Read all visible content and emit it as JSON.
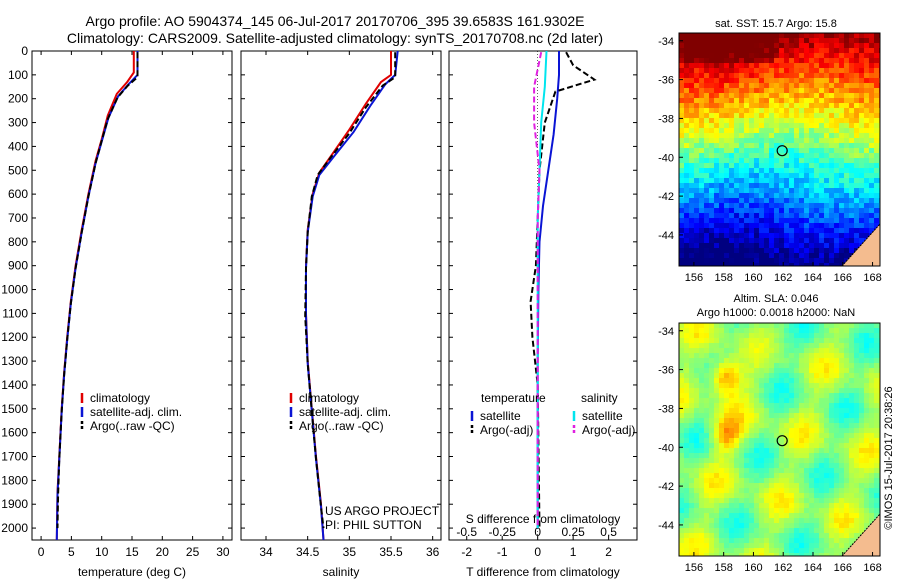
{
  "header": {
    "line1": "Argo profile: AO 5904374_145 06-Jul-2017 20170706_395 39.6583S 161.9302E",
    "line2": "Climatology: CARS2009. Satellite-adjusted climatology: synTS_20170708.nc (2d later)"
  },
  "footer_stamp": "©IMOS 15-Jul-2017 20:38:26",
  "colors": {
    "climatology": "#e00000",
    "satellite": "#0a14d4",
    "argo": "#000000",
    "sat_salinity": "#00e5ee",
    "argo_salinity": "#e020e0"
  },
  "chart_data": [
    {
      "type": "line",
      "id": "temperature",
      "xlabel": "temperature (deg C)",
      "ylim": [
        0,
        2050
      ],
      "y_inverted": true,
      "xlim": [
        -1.5,
        31.5
      ],
      "yticks": [
        "0",
        "100",
        "200",
        "300",
        "400",
        "500",
        "600",
        "700",
        "800",
        "900",
        "1000",
        "1100",
        "1200",
        "1300",
        "1400",
        "1500",
        "1600",
        "1700",
        "1800",
        "1900",
        "2000"
      ],
      "xticks": [
        "0",
        "5",
        "10",
        "15",
        "20",
        "25",
        "30"
      ],
      "legend": [
        "climatology",
        "satellite-adj. clim.",
        "Argo(..raw -QC)"
      ],
      "series": [
        {
          "name": "climatology",
          "style": "solid",
          "color": "climatology",
          "points": [
            [
              15.3,
              0
            ],
            [
              15.3,
              90
            ],
            [
              14.2,
              130
            ],
            [
              12.5,
              180
            ],
            [
              11.0,
              270
            ],
            [
              10.0,
              370
            ],
            [
              9.0,
              460
            ],
            [
              7.8,
              600
            ],
            [
              6.7,
              750
            ],
            [
              5.7,
              900
            ],
            [
              4.9,
              1050
            ],
            [
              4.3,
              1200
            ],
            [
              3.8,
              1350
            ],
            [
              3.4,
              1500
            ],
            [
              3.0,
              1700
            ],
            [
              2.7,
              1850
            ],
            [
              2.6,
              2050
            ]
          ]
        },
        {
          "name": "satellite-adj. clim.",
          "style": "solid",
          "color": "satellite",
          "points": [
            [
              15.9,
              0
            ],
            [
              15.9,
              100
            ],
            [
              14.4,
              140
            ],
            [
              12.7,
              190
            ],
            [
              11.1,
              280
            ],
            [
              10.0,
              380
            ],
            [
              9.0,
              470
            ],
            [
              7.8,
              610
            ],
            [
              6.7,
              760
            ],
            [
              5.7,
              910
            ],
            [
              4.9,
              1060
            ],
            [
              4.3,
              1210
            ],
            [
              3.8,
              1360
            ],
            [
              3.4,
              1510
            ],
            [
              3.0,
              1710
            ],
            [
              2.7,
              1860
            ],
            [
              2.6,
              2050
            ]
          ]
        },
        {
          "name": "Argo(..raw -QC)",
          "style": "dashed",
          "color": "argo",
          "points": [
            [
              15.9,
              5
            ],
            [
              15.9,
              110
            ],
            [
              14.3,
              145
            ],
            [
              12.6,
              195
            ],
            [
              11.0,
              285
            ],
            [
              9.9,
              385
            ],
            [
              9.0,
              470
            ],
            [
              7.8,
              610
            ],
            [
              6.7,
              760
            ],
            [
              5.7,
              910
            ],
            [
              4.9,
              1060
            ],
            [
              4.3,
              1210
            ],
            [
              3.8,
              1360
            ],
            [
              3.4,
              1510
            ],
            [
              3.0,
              1710
            ],
            [
              2.8,
              1860
            ],
            [
              2.7,
              2000
            ]
          ]
        }
      ]
    },
    {
      "type": "line",
      "id": "salinity",
      "xlabel": "salinity",
      "ylim": [
        0,
        2050
      ],
      "y_inverted": true,
      "xlim": [
        33.7,
        36.1
      ],
      "xticks": [
        "34",
        "34.5",
        "35",
        "35.5",
        "36"
      ],
      "legend": [
        "climatology",
        "satellite-adj. clim.",
        "Argo(..raw -QC)"
      ],
      "annotation": [
        "US ARGO PROJECT",
        "PI: PHIL SUTTON"
      ],
      "series": [
        {
          "name": "climatology",
          "style": "solid",
          "color": "climatology",
          "points": [
            [
              35.5,
              0
            ],
            [
              35.5,
              100
            ],
            [
              35.38,
              130
            ],
            [
              35.2,
              220
            ],
            [
              35.0,
              330
            ],
            [
              34.8,
              430
            ],
            [
              34.64,
              510
            ],
            [
              34.56,
              600
            ],
            [
              34.5,
              750
            ],
            [
              34.48,
              900
            ],
            [
              34.48,
              1100
            ],
            [
              34.5,
              1300
            ],
            [
              34.55,
              1500
            ],
            [
              34.6,
              1700
            ],
            [
              34.66,
              1900
            ],
            [
              34.69,
              2050
            ]
          ]
        },
        {
          "name": "satellite-adj. clim.",
          "style": "solid",
          "color": "satellite",
          "points": [
            [
              35.58,
              0
            ],
            [
              35.55,
              100
            ],
            [
              35.43,
              140
            ],
            [
              35.25,
              230
            ],
            [
              35.05,
              340
            ],
            [
              34.82,
              440
            ],
            [
              34.64,
              520
            ],
            [
              34.56,
              610
            ],
            [
              34.5,
              760
            ],
            [
              34.48,
              910
            ],
            [
              34.48,
              1110
            ],
            [
              34.5,
              1310
            ],
            [
              34.55,
              1510
            ],
            [
              34.6,
              1710
            ],
            [
              34.66,
              1910
            ],
            [
              34.69,
              2050
            ]
          ]
        },
        {
          "name": "Argo(..raw -QC)",
          "style": "dashed",
          "color": "argo",
          "points": [
            [
              35.55,
              5
            ],
            [
              35.55,
              110
            ],
            [
              35.4,
              145
            ],
            [
              35.2,
              235
            ],
            [
              35.0,
              345
            ],
            [
              34.78,
              445
            ],
            [
              34.62,
              520
            ],
            [
              34.55,
              610
            ],
            [
              34.5,
              760
            ],
            [
              34.48,
              910
            ],
            [
              34.47,
              1110
            ],
            [
              34.5,
              1310
            ],
            [
              34.55,
              1510
            ],
            [
              34.6,
              1710
            ],
            [
              34.66,
              1910
            ],
            [
              34.69,
              2000
            ]
          ]
        }
      ]
    },
    {
      "type": "line",
      "id": "difference",
      "xlabel": "T difference from climatology",
      "xlabel_top": "S difference from climatology",
      "ylim": [
        0,
        2050
      ],
      "y_inverted": true,
      "xlim": [
        -2.5,
        2.8
      ],
      "xticks": [
        "-2",
        "-1",
        "0",
        "1",
        "2"
      ],
      "xticks_s": [
        "-0.5",
        "-0.25",
        "0",
        "0.25",
        "0.5"
      ],
      "legend_titles": [
        "temperature",
        "salinity"
      ],
      "legend": [
        "satellite",
        "Argo(-adj)",
        "satellite",
        "Argo(-adj)"
      ],
      "series": [
        {
          "name": "satellite",
          "style": "solid",
          "color": "satellite",
          "points": [
            [
              0.6,
              0
            ],
            [
              0.6,
              100
            ],
            [
              0.55,
              200
            ],
            [
              0.45,
              350
            ],
            [
              0.3,
              500
            ],
            [
              0.15,
              650
            ],
            [
              0.05,
              800
            ],
            [
              0.02,
              1000
            ],
            [
              0.0,
              1300
            ],
            [
              0.0,
              1600
            ],
            [
              0.0,
              2000
            ]
          ]
        },
        {
          "name": "Argo(-adj)",
          "style": "dashed",
          "color": "argo",
          "points": [
            [
              0.8,
              5
            ],
            [
              1.0,
              60
            ],
            [
              1.6,
              120
            ],
            [
              0.5,
              170
            ],
            [
              0.2,
              300
            ],
            [
              0.05,
              500
            ],
            [
              -0.05,
              900
            ],
            [
              -0.2,
              1050
            ],
            [
              -0.15,
              1200
            ],
            [
              0.0,
              1400
            ],
            [
              0.05,
              2000
            ]
          ]
        },
        {
          "name": "satellite",
          "style": "solid",
          "color": "sat_salinity",
          "points": [
            [
              0.25,
              0
            ],
            [
              0.2,
              150
            ],
            [
              0.1,
              300
            ],
            [
              0.05,
              500
            ],
            [
              0.0,
              700
            ],
            [
              0.0,
              1000
            ],
            [
              0.0,
              1500
            ],
            [
              0.0,
              2000
            ]
          ]
        },
        {
          "name": "Argo(-adj)",
          "style": "dashed",
          "color": "argo_salinity",
          "points": [
            [
              0.1,
              5
            ],
            [
              -0.1,
              150
            ],
            [
              -0.1,
              300
            ],
            [
              0.05,
              500
            ],
            [
              0.0,
              700
            ],
            [
              0.0,
              1000
            ],
            [
              0.0,
              1500
            ],
            [
              0.0,
              2000
            ]
          ]
        }
      ]
    },
    {
      "type": "heatmap",
      "id": "sst",
      "title": "sat. SST: 15.7 Argo: 15.8",
      "yticks": [
        "-34",
        "-36",
        "-38",
        "-40",
        "-42",
        "-44"
      ],
      "xticks": [
        "156",
        "158",
        "160",
        "162",
        "164",
        "166",
        "168"
      ],
      "xlim": [
        155,
        168.5
      ],
      "ylim": [
        -45.6,
        -33.6
      ],
      "marker": [
        161.93,
        -39.66
      ]
    },
    {
      "type": "heatmap",
      "id": "sla",
      "title": "Altim. SLA: 0.046",
      "subtitle": "Argo h1000: 0.0018 h2000: NaN",
      "yticks": [
        "-34",
        "-36",
        "-38",
        "-40",
        "-42",
        "-44"
      ],
      "xticks": [
        "156",
        "158",
        "160",
        "162",
        "164",
        "166",
        "168"
      ],
      "xlim": [
        155,
        168.5
      ],
      "ylim": [
        -45.6,
        -33.6
      ],
      "marker": [
        161.93,
        -39.66
      ]
    }
  ]
}
